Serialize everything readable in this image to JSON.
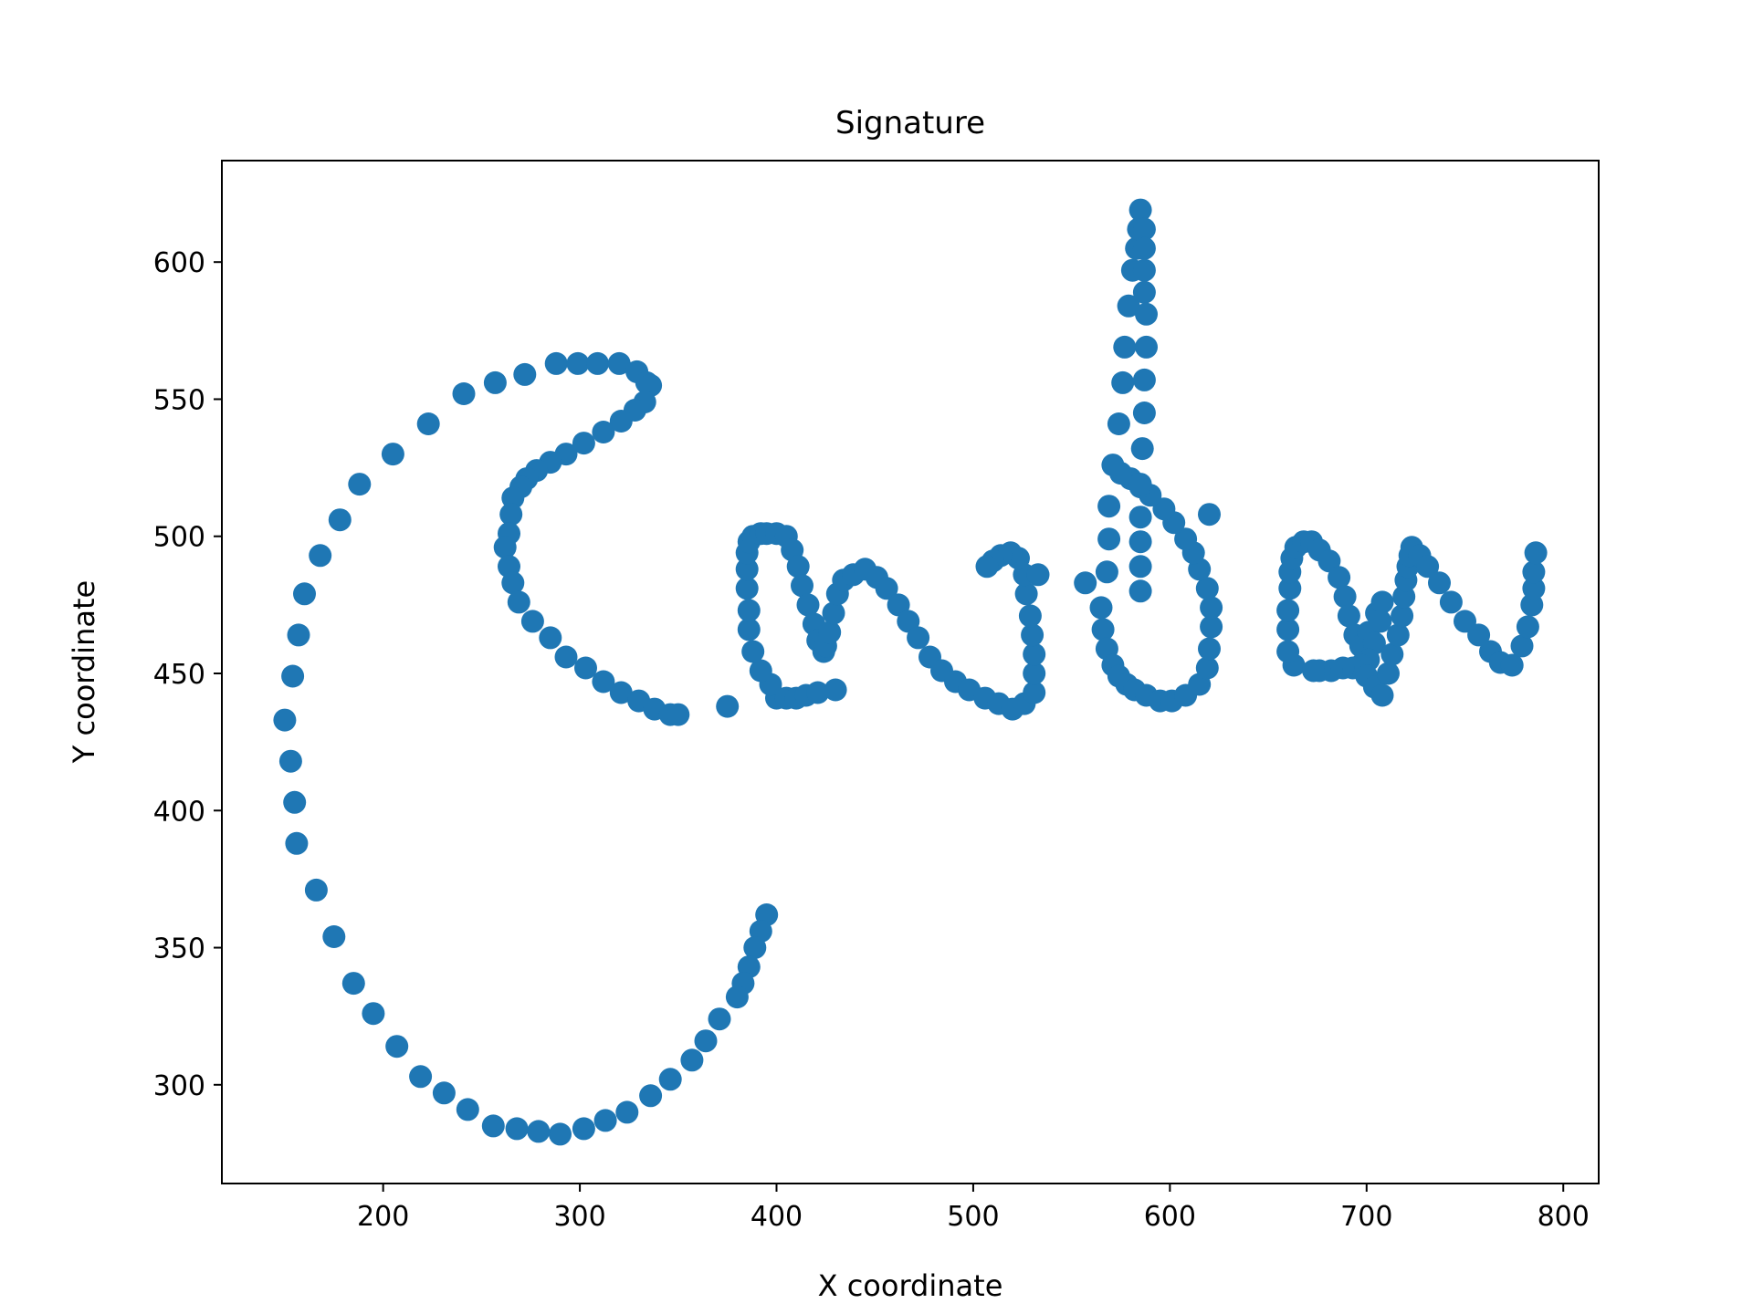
{
  "chart_data": {
    "type": "scatter",
    "title": "Signature",
    "xlabel": "X coordinate",
    "ylabel": "Y coordinate",
    "xlim": [
      118,
      818
    ],
    "ylim": [
      264,
      637
    ],
    "xticks": [
      200,
      300,
      400,
      500,
      600,
      700,
      800
    ],
    "yticks": [
      300,
      350,
      400,
      450,
      500,
      550,
      600
    ],
    "grid": false,
    "color": "#1f77b4",
    "series": [
      {
        "points": [
          [
            395,
            362
          ],
          [
            392,
            356
          ],
          [
            389,
            350
          ],
          [
            386,
            343
          ],
          [
            383,
            337
          ],
          [
            380,
            332
          ],
          [
            371,
            324
          ],
          [
            364,
            316
          ],
          [
            357,
            309
          ],
          [
            346,
            302
          ],
          [
            336,
            296
          ],
          [
            324,
            290
          ],
          [
            313,
            287
          ],
          [
            302,
            284
          ],
          [
            290,
            282
          ],
          [
            279,
            283
          ],
          [
            268,
            284
          ],
          [
            256,
            285
          ],
          [
            243,
            291
          ],
          [
            231,
            297
          ],
          [
            219,
            303
          ],
          [
            207,
            314
          ],
          [
            195,
            326
          ],
          [
            185,
            337
          ],
          [
            175,
            354
          ],
          [
            166,
            371
          ],
          [
            156,
            388
          ],
          [
            155,
            403
          ],
          [
            153,
            418
          ],
          [
            150,
            433
          ],
          [
            154,
            449
          ],
          [
            157,
            464
          ],
          [
            160,
            479
          ],
          [
            168,
            493
          ],
          [
            178,
            506
          ],
          [
            188,
            519
          ],
          [
            205,
            530
          ],
          [
            223,
            541
          ],
          [
            241,
            552
          ],
          [
            257,
            556
          ],
          [
            272,
            559
          ],
          [
            288,
            563
          ],
          [
            299,
            563
          ],
          [
            309,
            563
          ],
          [
            320,
            563
          ],
          [
            329,
            560
          ],
          [
            334,
            556
          ],
          [
            336,
            555
          ],
          [
            333,
            549
          ],
          [
            328,
            546
          ],
          [
            321,
            542
          ],
          [
            312,
            538
          ],
          [
            302,
            534
          ],
          [
            293,
            530
          ],
          [
            285,
            527
          ],
          [
            278,
            524
          ],
          [
            273,
            521
          ],
          [
            270,
            518
          ],
          [
            266,
            514
          ],
          [
            265,
            508
          ],
          [
            264,
            501
          ],
          [
            262,
            496
          ],
          [
            264,
            489
          ],
          [
            266,
            483
          ],
          [
            269,
            476
          ],
          [
            276,
            469
          ],
          [
            285,
            463
          ],
          [
            293,
            456
          ],
          [
            303,
            452
          ],
          [
            312,
            447
          ],
          [
            321,
            443
          ],
          [
            330,
            440
          ],
          [
            338,
            437
          ],
          [
            346,
            435
          ],
          [
            350,
            435
          ],
          [
            375,
            438
          ],
          [
            400,
            441
          ],
          [
            405,
            441
          ],
          [
            410,
            441
          ],
          [
            415,
            442
          ],
          [
            421,
            443
          ],
          [
            430,
            444
          ],
          [
            397,
            446
          ],
          [
            392,
            451
          ],
          [
            388,
            458
          ],
          [
            386,
            466
          ],
          [
            386,
            473
          ],
          [
            385,
            481
          ],
          [
            385,
            488
          ],
          [
            385,
            494
          ],
          [
            386,
            498
          ],
          [
            388,
            500
          ],
          [
            392,
            501
          ],
          [
            395,
            501
          ],
          [
            400,
            501
          ],
          [
            405,
            500
          ],
          [
            408,
            495
          ],
          [
            411,
            489
          ],
          [
            413,
            482
          ],
          [
            416,
            475
          ],
          [
            419,
            468
          ],
          [
            421,
            462
          ],
          [
            424,
            458
          ],
          [
            425,
            460
          ],
          [
            427,
            465
          ],
          [
            429,
            472
          ],
          [
            431,
            479
          ],
          [
            434,
            484
          ],
          [
            439,
            486
          ],
          [
            445,
            488
          ],
          [
            451,
            485
          ],
          [
            456,
            481
          ],
          [
            462,
            475
          ],
          [
            467,
            469
          ],
          [
            472,
            463
          ],
          [
            478,
            456
          ],
          [
            484,
            451
          ],
          [
            491,
            447
          ],
          [
            498,
            444
          ],
          [
            506,
            441
          ],
          [
            513,
            439
          ],
          [
            520,
            437
          ],
          [
            526,
            439
          ],
          [
            531,
            443
          ],
          [
            531,
            450
          ],
          [
            531,
            457
          ],
          [
            530,
            464
          ],
          [
            529,
            471
          ],
          [
            527,
            479
          ],
          [
            526,
            486
          ],
          [
            523,
            492
          ],
          [
            519,
            494
          ],
          [
            514,
            493
          ],
          [
            510,
            491
          ],
          [
            507,
            489
          ],
          [
            533,
            486
          ],
          [
            557,
            483
          ],
          [
            565,
            474
          ],
          [
            566,
            466
          ],
          [
            568,
            459
          ],
          [
            571,
            453
          ],
          [
            574,
            449
          ],
          [
            578,
            446
          ],
          [
            582,
            444
          ],
          [
            588,
            442
          ],
          [
            595,
            440
          ],
          [
            601,
            440
          ],
          [
            608,
            442
          ],
          [
            615,
            446
          ],
          [
            619,
            452
          ],
          [
            620,
            459
          ],
          [
            621,
            467
          ],
          [
            621,
            474
          ],
          [
            619,
            481
          ],
          [
            615,
            488
          ],
          [
            612,
            494
          ],
          [
            608,
            499
          ],
          [
            602,
            505
          ],
          [
            597,
            510
          ],
          [
            590,
            515
          ],
          [
            585,
            518
          ],
          [
            580,
            521
          ],
          [
            575,
            523
          ],
          [
            571,
            526
          ],
          [
            569,
            511
          ],
          [
            569,
            499
          ],
          [
            568,
            487
          ],
          [
            574,
            541
          ],
          [
            576,
            556
          ],
          [
            577,
            569
          ],
          [
            579,
            584
          ],
          [
            581,
            597
          ],
          [
            583,
            605
          ],
          [
            584,
            612
          ],
          [
            585,
            619
          ],
          [
            587,
            612
          ],
          [
            587,
            605
          ],
          [
            587,
            597
          ],
          [
            587,
            589
          ],
          [
            588,
            581
          ],
          [
            588,
            569
          ],
          [
            587,
            557
          ],
          [
            587,
            545
          ],
          [
            586,
            532
          ],
          [
            585,
            519
          ],
          [
            585,
            507
          ],
          [
            585,
            498
          ],
          [
            585,
            489
          ],
          [
            585,
            480
          ],
          [
            620,
            508
          ],
          [
            663,
            453
          ],
          [
            660,
            458
          ],
          [
            660,
            466
          ],
          [
            660,
            473
          ],
          [
            661,
            481
          ],
          [
            661,
            487
          ],
          [
            662,
            492
          ],
          [
            664,
            496
          ],
          [
            668,
            498
          ],
          [
            672,
            498
          ],
          [
            676,
            495
          ],
          [
            681,
            491
          ],
          [
            686,
            485
          ],
          [
            689,
            478
          ],
          [
            691,
            471
          ],
          [
            694,
            464
          ],
          [
            697,
            460
          ],
          [
            701,
            465
          ],
          [
            705,
            472
          ],
          [
            708,
            476
          ],
          [
            707,
            469
          ],
          [
            704,
            461
          ],
          [
            701,
            455
          ],
          [
            697,
            453
          ],
          [
            693,
            452
          ],
          [
            688,
            452
          ],
          [
            682,
            451
          ],
          [
            676,
            451
          ],
          [
            673,
            451
          ],
          [
            700,
            449
          ],
          [
            704,
            445
          ],
          [
            708,
            442
          ],
          [
            711,
            450
          ],
          [
            713,
            457
          ],
          [
            716,
            464
          ],
          [
            718,
            471
          ],
          [
            719,
            478
          ],
          [
            720,
            484
          ],
          [
            721,
            489
          ],
          [
            722,
            493
          ],
          [
            723,
            496
          ],
          [
            727,
            493
          ],
          [
            731,
            489
          ],
          [
            737,
            483
          ],
          [
            743,
            476
          ],
          [
            750,
            469
          ],
          [
            757,
            464
          ],
          [
            763,
            458
          ],
          [
            768,
            454
          ],
          [
            774,
            453
          ],
          [
            779,
            460
          ],
          [
            782,
            467
          ],
          [
            784,
            475
          ],
          [
            785,
            481
          ],
          [
            785,
            487
          ],
          [
            786,
            494
          ]
        ]
      }
    ]
  }
}
